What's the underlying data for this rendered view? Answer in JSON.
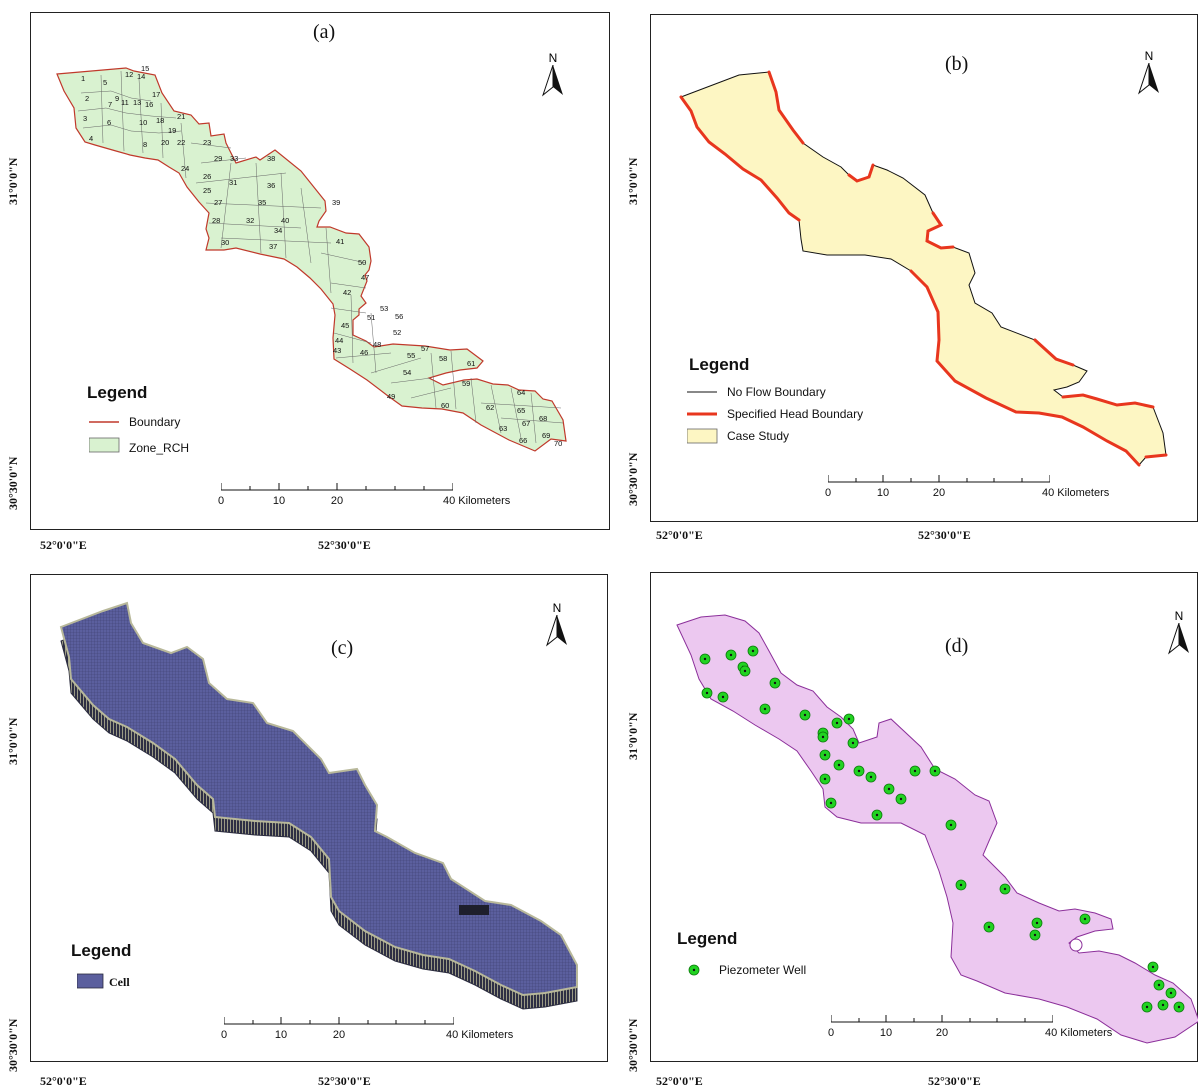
{
  "panels": {
    "a": {
      "label": "(a)",
      "legend_title": "Legend",
      "legend_items": [
        "Boundary",
        "Zone_RCH"
      ],
      "zone_numbers": [
        "1",
        "2",
        "3",
        "4",
        "5",
        "6",
        "7",
        "8",
        "9",
        "10",
        "11",
        "12",
        "13",
        "14",
        "15",
        "16",
        "17",
        "18",
        "19",
        "20",
        "21",
        "22",
        "23",
        "24",
        "25",
        "26",
        "27",
        "28",
        "29",
        "30",
        "31",
        "32",
        "33",
        "34",
        "35",
        "36",
        "37",
        "38",
        "39",
        "40",
        "41",
        "42",
        "43",
        "44",
        "45",
        "46",
        "47",
        "48",
        "49",
        "50",
        "51",
        "52",
        "53",
        "54",
        "55",
        "56",
        "57",
        "58",
        "59",
        "60",
        "61",
        "62",
        "63",
        "64",
        "65",
        "66",
        "67",
        "68",
        "69",
        "70"
      ],
      "colors": {
        "fill": "#d9f2d0",
        "boundary": "#c0392b"
      }
    },
    "b": {
      "label": "(b)",
      "legend_title": "Legend",
      "legend_items": [
        "No Flow Boundary",
        "Specified Head Boundary",
        "Case Study"
      ],
      "colors": {
        "fill": "#fdf6c3",
        "no_flow": "#111111",
        "specified_head": "#e8361e"
      }
    },
    "c": {
      "label": "(c)",
      "legend_title": "Legend",
      "legend_items": [
        "Cell"
      ],
      "colors": {
        "fill": "#5b5f9e",
        "edge": "#2b2c3e"
      }
    },
    "d": {
      "label": "(d)",
      "legend_title": "Legend",
      "legend_items": [
        "Piezometer Well"
      ],
      "colors": {
        "fill": "#ecc8f0",
        "outline": "#8b2f9a",
        "well": "#21d321"
      }
    }
  },
  "north_label": "N",
  "lat_labels": [
    "31°0'0\"N",
    "30°30'0\"N"
  ],
  "lon_labels": [
    "52°0'0\"E",
    "52°30'0\"E"
  ],
  "scale": {
    "ticks": [
      "0",
      "10",
      "20",
      "40 Kilometers"
    ]
  }
}
